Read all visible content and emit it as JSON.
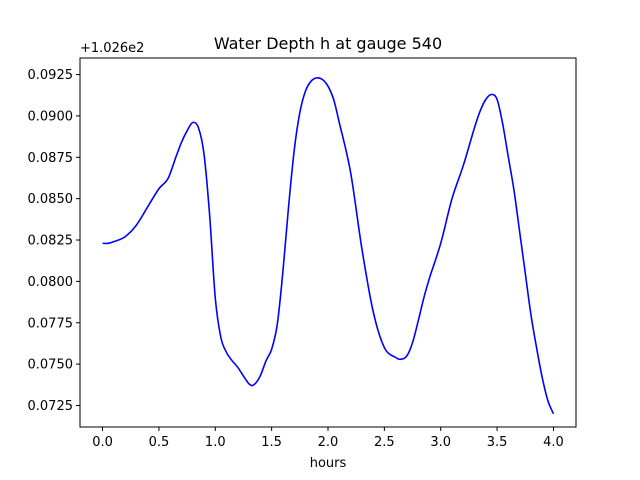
{
  "chart_data": {
    "type": "line",
    "title": "Water Depth h at gauge 540",
    "xlabel": "hours",
    "ylabel": "",
    "y_offset_label": "+1.026e2",
    "xlim": [
      -0.2,
      4.2
    ],
    "ylim": [
      0.0712,
      0.0935
    ],
    "xticks": [
      0.0,
      0.5,
      1.0,
      1.5,
      2.0,
      2.5,
      3.0,
      3.5,
      4.0
    ],
    "xtick_labels": [
      "0.0",
      "0.5",
      "1.0",
      "1.5",
      "2.0",
      "2.5",
      "3.0",
      "3.5",
      "4.0"
    ],
    "yticks": [
      0.0725,
      0.075,
      0.0775,
      0.08,
      0.0825,
      0.085,
      0.0875,
      0.09,
      0.0925
    ],
    "ytick_labels": [
      "0.0725",
      "0.0750",
      "0.0775",
      "0.0800",
      "0.0825",
      "0.0850",
      "0.0875",
      "0.0900",
      "0.0925"
    ],
    "grid": false,
    "series": [
      {
        "color": "#0000ff",
        "x": [
          0.0,
          0.05,
          0.1,
          0.2,
          0.3,
          0.4,
          0.5,
          0.58,
          0.65,
          0.7,
          0.75,
          0.8,
          0.85,
          0.9,
          0.95,
          1.0,
          1.05,
          1.1,
          1.15,
          1.2,
          1.3,
          1.35,
          1.4,
          1.45,
          1.5,
          1.55,
          1.6,
          1.65,
          1.7,
          1.75,
          1.8,
          1.85,
          1.9,
          1.95,
          2.0,
          2.05,
          2.1,
          2.2,
          2.3,
          2.4,
          2.5,
          2.6,
          2.65,
          2.7,
          2.75,
          2.8,
          2.85,
          2.9,
          3.0,
          3.1,
          3.2,
          3.3,
          3.35,
          3.4,
          3.45,
          3.5,
          3.55,
          3.6,
          3.65,
          3.7,
          3.75,
          3.8,
          3.85,
          3.9,
          3.95,
          4.0
        ],
        "y": [
          0.0823,
          0.0823,
          0.0824,
          0.0827,
          0.0834,
          0.0845,
          0.0856,
          0.0862,
          0.0875,
          0.0884,
          0.0891,
          0.0896,
          0.0893,
          0.0877,
          0.084,
          0.079,
          0.0766,
          0.0757,
          0.0752,
          0.0748,
          0.0738,
          0.0738,
          0.0743,
          0.0752,
          0.0759,
          0.0774,
          0.0806,
          0.0845,
          0.0879,
          0.0902,
          0.0915,
          0.0921,
          0.0923,
          0.0922,
          0.0918,
          0.091,
          0.0896,
          0.0866,
          0.082,
          0.0782,
          0.076,
          0.0754,
          0.0753,
          0.0755,
          0.0763,
          0.0776,
          0.079,
          0.0802,
          0.0823,
          0.085,
          0.087,
          0.0893,
          0.0903,
          0.091,
          0.0913,
          0.091,
          0.0895,
          0.0875,
          0.0855,
          0.083,
          0.0805,
          0.078,
          0.076,
          0.0742,
          0.0728,
          0.072
        ]
      }
    ]
  }
}
